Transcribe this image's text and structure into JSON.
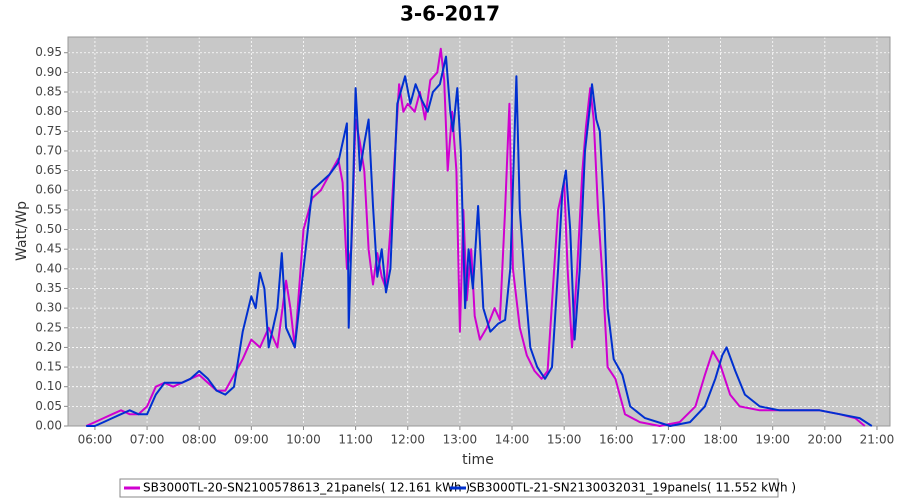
{
  "chart_data": {
    "type": "line",
    "title": "3-6-2017",
    "x_label": "time",
    "y_label": "Watt/Wp",
    "xlim": [
      329,
      1275
    ],
    "ylim": [
      0,
      0.99
    ],
    "grid": true,
    "legend": "bottom",
    "xticks": [
      {
        "value": 360,
        "label": "06:00"
      },
      {
        "value": 420,
        "label": "07:00"
      },
      {
        "value": 480,
        "label": "08:00"
      },
      {
        "value": 540,
        "label": "09:00"
      },
      {
        "value": 600,
        "label": "10:00"
      },
      {
        "value": 660,
        "label": "11:00"
      },
      {
        "value": 720,
        "label": "12:00"
      },
      {
        "value": 780,
        "label": "13:00"
      },
      {
        "value": 840,
        "label": "14:00"
      },
      {
        "value": 900,
        "label": "15:00"
      },
      {
        "value": 960,
        "label": "16:00"
      },
      {
        "value": 1020,
        "label": "17:00"
      },
      {
        "value": 1080,
        "label": "18:00"
      },
      {
        "value": 1140,
        "label": "19:00"
      },
      {
        "value": 1200,
        "label": "20:00"
      },
      {
        "value": 1260,
        "label": "21:00"
      }
    ],
    "yticks": [
      {
        "value": 0,
        "label": "0.00"
      },
      {
        "value": 0.05,
        "label": "0.05"
      },
      {
        "value": 0.1,
        "label": "0.10"
      },
      {
        "value": 0.15,
        "label": "0.15"
      },
      {
        "value": 0.2,
        "label": "0.20"
      },
      {
        "value": 0.25,
        "label": "0.25"
      },
      {
        "value": 0.3,
        "label": "0.30"
      },
      {
        "value": 0.35,
        "label": "0.35"
      },
      {
        "value": 0.4,
        "label": "0.40"
      },
      {
        "value": 0.45,
        "label": "0.45"
      },
      {
        "value": 0.5,
        "label": "0.50"
      },
      {
        "value": 0.55,
        "label": "0.55"
      },
      {
        "value": 0.6,
        "label": "0.60"
      },
      {
        "value": 0.65,
        "label": "0.65"
      },
      {
        "value": 0.7,
        "label": "0.70"
      },
      {
        "value": 0.75,
        "label": "0.75"
      },
      {
        "value": 0.8,
        "label": "0.80"
      },
      {
        "value": 0.85,
        "label": "0.85"
      },
      {
        "value": 0.9,
        "label": "0.90"
      },
      {
        "value": 0.95,
        "label": "0.95"
      }
    ],
    "series": [
      {
        "name": "SB3000TL-20-SN2100578613_21panels( 12.161 kWh )",
        "color": "#d000d0",
        "x": [
          350,
          360,
          370,
          380,
          390,
          400,
          410,
          420,
          430,
          440,
          450,
          460,
          470,
          480,
          490,
          500,
          510,
          520,
          530,
          540,
          550,
          560,
          570,
          580,
          585,
          590,
          600,
          610,
          620,
          630,
          640,
          645,
          650,
          655,
          660,
          665,
          670,
          675,
          680,
          685,
          690,
          695,
          700,
          710,
          715,
          720,
          728,
          734,
          740,
          746,
          754,
          758,
          762,
          766,
          771,
          776,
          780,
          784,
          788,
          793,
          797,
          803,
          811,
          820,
          826,
          832,
          837,
          841,
          849,
          857,
          866,
          874,
          881,
          887,
          893,
          900,
          904,
          909,
          915,
          921,
          925,
          930,
          934,
          939,
          945,
          950,
          959,
          970,
          987,
          1010,
          1033,
          1051,
          1062,
          1071,
          1079,
          1091,
          1102,
          1125,
          1148,
          1171,
          1194,
          1217,
          1235,
          1246
        ],
        "values": [
          0,
          0.01,
          0.02,
          0.03,
          0.04,
          0.03,
          0.03,
          0.05,
          0.1,
          0.11,
          0.1,
          0.11,
          0.12,
          0.13,
          0.11,
          0.09,
          0.09,
          0.13,
          0.17,
          0.22,
          0.2,
          0.25,
          0.2,
          0.37,
          0.3,
          0.2,
          0.5,
          0.58,
          0.6,
          0.64,
          0.68,
          0.62,
          0.4,
          0.45,
          0.78,
          0.72,
          0.65,
          0.45,
          0.36,
          0.44,
          0.38,
          0.35,
          0.5,
          0.87,
          0.8,
          0.82,
          0.8,
          0.85,
          0.78,
          0.88,
          0.9,
          0.96,
          0.88,
          0.65,
          0.8,
          0.65,
          0.24,
          0.55,
          0.32,
          0.45,
          0.28,
          0.22,
          0.25,
          0.3,
          0.27,
          0.55,
          0.82,
          0.4,
          0.25,
          0.18,
          0.14,
          0.12,
          0.14,
          0.35,
          0.55,
          0.62,
          0.4,
          0.2,
          0.4,
          0.65,
          0.76,
          0.86,
          0.78,
          0.55,
          0.35,
          0.15,
          0.12,
          0.03,
          0.01,
          0,
          0.01,
          0.05,
          0.13,
          0.19,
          0.16,
          0.08,
          0.05,
          0.04,
          0.04,
          0.04,
          0.04,
          0.03,
          0.02,
          0
        ]
      },
      {
        "name": "SB3000TL-21-SN2130032031_19panels( 11.552 kWh )",
        "color": "#0030d0",
        "x": [
          350,
          360,
          370,
          380,
          390,
          400,
          410,
          420,
          430,
          440,
          450,
          460,
          470,
          480,
          490,
          500,
          510,
          520,
          530,
          540,
          545,
          550,
          555,
          560,
          570,
          575,
          580,
          590,
          600,
          610,
          620,
          630,
          640,
          650,
          652,
          657,
          660,
          665,
          670,
          675,
          680,
          685,
          690,
          695,
          700,
          708,
          717,
          723,
          729,
          736,
          743,
          749,
          757,
          764,
          769,
          772,
          777,
          781,
          786,
          790,
          795,
          801,
          807,
          815,
          824,
          832,
          838,
          845,
          849,
          855,
          861,
          869,
          878,
          886,
          893,
          898,
          902,
          907,
          912,
          918,
          924,
          929,
          932,
          937,
          941,
          946,
          950,
          957,
          967,
          976,
          993,
          1022,
          1045,
          1062,
          1074,
          1082,
          1087,
          1097,
          1108,
          1125,
          1148,
          1171,
          1194,
          1217,
          1240,
          1254
        ],
        "values": [
          0,
          0,
          0.01,
          0.02,
          0.03,
          0.04,
          0.03,
          0.03,
          0.08,
          0.11,
          0.11,
          0.11,
          0.12,
          0.14,
          0.12,
          0.09,
          0.08,
          0.1,
          0.24,
          0.33,
          0.3,
          0.39,
          0.35,
          0.2,
          0.3,
          0.44,
          0.25,
          0.2,
          0.4,
          0.6,
          0.62,
          0.64,
          0.67,
          0.77,
          0.25,
          0.6,
          0.86,
          0.65,
          0.72,
          0.78,
          0.56,
          0.38,
          0.45,
          0.34,
          0.4,
          0.82,
          0.89,
          0.82,
          0.87,
          0.83,
          0.8,
          0.85,
          0.87,
          0.94,
          0.8,
          0.75,
          0.86,
          0.7,
          0.3,
          0.45,
          0.35,
          0.56,
          0.3,
          0.24,
          0.26,
          0.27,
          0.4,
          0.89,
          0.55,
          0.36,
          0.2,
          0.15,
          0.12,
          0.15,
          0.4,
          0.6,
          0.65,
          0.5,
          0.22,
          0.4,
          0.7,
          0.8,
          0.87,
          0.78,
          0.75,
          0.55,
          0.3,
          0.17,
          0.13,
          0.05,
          0.02,
          0,
          0.01,
          0.05,
          0.12,
          0.18,
          0.2,
          0.14,
          0.08,
          0.05,
          0.04,
          0.04,
          0.04,
          0.03,
          0.02,
          0
        ]
      }
    ]
  }
}
